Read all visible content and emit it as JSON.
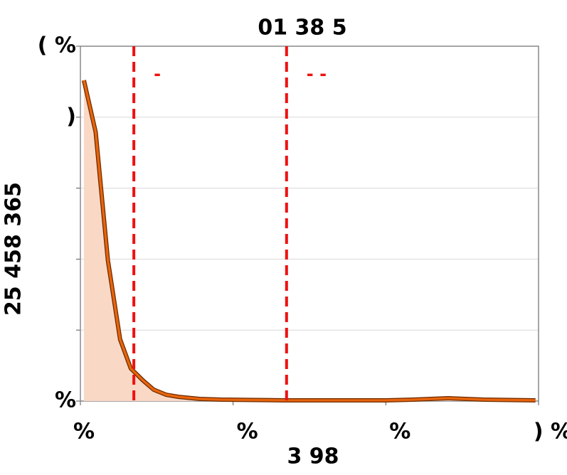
{
  "chart_data": {
    "type": "area",
    "title": "01   38    5",
    "xlabel": "3  98",
    "ylabel": "25  458  365",
    "x": [
      0.023,
      0.1,
      0.18,
      0.26,
      0.33,
      0.41,
      0.48,
      0.56,
      0.64,
      0.78,
      0.92,
      1.34,
      2.0,
      2.18,
      2.41,
      2.64,
      2.98
    ],
    "values": [
      90.4,
      75.8,
      39.7,
      17.4,
      9.2,
      5.8,
      3.2,
      1.8,
      1.2,
      0.6,
      0.4,
      0.2,
      0.2,
      0.4,
      0.8,
      0.4,
      0.2
    ],
    "color": "#e8640c",
    "fill_color": "#f9d8c6",
    "xlim": [
      0,
      3
    ],
    "xticks": [
      {
        "value": 0,
        "label": "%"
      },
      {
        "value": 1,
        "label": "%"
      },
      {
        "value": 2,
        "label": "%"
      },
      {
        "value": 3,
        "label": ") %"
      }
    ],
    "ylim": [
      0,
      100
    ],
    "yticks": [
      {
        "value": 0,
        "label": "%"
      },
      {
        "value": 20,
        "label": null
      },
      {
        "value": 40,
        "label": null
      },
      {
        "value": 60,
        "label": null
      },
      {
        "value": 80,
        "label": ")"
      },
      {
        "value": 100,
        "label": "( %"
      }
    ],
    "grid": true,
    "vlines": [
      {
        "x": 0.35,
        "label": "-"
      },
      {
        "x": 1.35,
        "label": "- -"
      }
    ],
    "vline_color": "#ee1111"
  }
}
